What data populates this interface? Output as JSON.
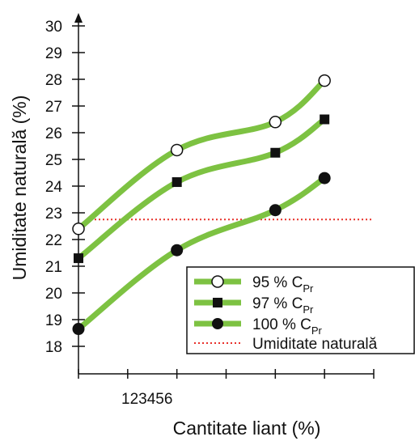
{
  "chart_data": {
    "type": "line",
    "xlabel": "Cantitate liant (%)",
    "ylabel": "Umiditate naturală (%)",
    "x_tick_text": "123456",
    "ylim": [
      17.5,
      30.5
    ],
    "yticks": [
      18,
      19,
      20,
      21,
      22,
      23,
      24,
      25,
      26,
      27,
      28,
      29,
      30
    ],
    "x": [
      1,
      3,
      5,
      6
    ],
    "xlim": [
      1,
      7
    ],
    "grid": false,
    "legend_position": "bottom-right",
    "series": [
      {
        "name": "95 % C",
        "sub": "Pr",
        "marker": "open-circle",
        "color": "#7dc242",
        "values": [
          22.4,
          25.35,
          26.4,
          27.95
        ]
      },
      {
        "name": "97 % C",
        "sub": "Pr",
        "marker": "filled-square",
        "color": "#7dc242",
        "values": [
          21.3,
          24.15,
          25.25,
          26.5
        ]
      },
      {
        "name": "100 % C",
        "sub": "Pr",
        "marker": "filled-circle",
        "color": "#7dc242",
        "values": [
          18.65,
          21.6,
          23.1,
          24.3
        ]
      }
    ],
    "reference_line": {
      "name": "Umiditate naturală",
      "value": 22.75,
      "x_range": [
        1,
        7
      ],
      "color": "#e8302a",
      "style": "dotted"
    }
  }
}
